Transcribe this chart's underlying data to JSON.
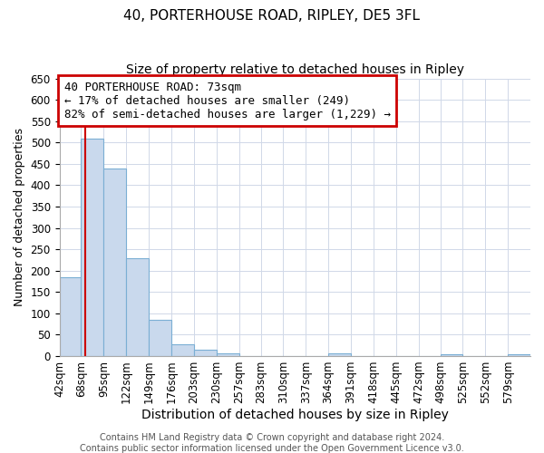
{
  "title": "40, PORTERHOUSE ROAD, RIPLEY, DE5 3FL",
  "subtitle": "Size of property relative to detached houses in Ripley",
  "xlabel": "Distribution of detached houses by size in Ripley",
  "ylabel": "Number of detached properties",
  "bin_edges": [
    42,
    68,
    95,
    122,
    149,
    176,
    203,
    230,
    257,
    283,
    310,
    337,
    364,
    391,
    418,
    445,
    472,
    498,
    525,
    552,
    579
  ],
  "bin_labels": [
    "42sqm",
    "68sqm",
    "95sqm",
    "122sqm",
    "149sqm",
    "176sqm",
    "203sqm",
    "230sqm",
    "257sqm",
    "283sqm",
    "310sqm",
    "337sqm",
    "364sqm",
    "391sqm",
    "418sqm",
    "445sqm",
    "472sqm",
    "498sqm",
    "525sqm",
    "552sqm",
    "579sqm"
  ],
  "bar_heights": [
    185,
    510,
    440,
    228,
    85,
    28,
    14,
    7,
    0,
    0,
    0,
    0,
    7,
    0,
    0,
    0,
    0,
    5,
    0,
    0,
    5
  ],
  "bar_color": "#c9d9ed",
  "bar_edge_color": "#7bafd4",
  "property_line_x": 73,
  "property_line_color": "#cc0000",
  "annotation_text": "40 PORTERHOUSE ROAD: 73sqm\n← 17% of detached houses are smaller (249)\n82% of semi-detached houses are larger (1,229) →",
  "annotation_box_color": "#ffffff",
  "annotation_box_edge_color": "#cc0000",
  "ylim": [
    0,
    650
  ],
  "yticks": [
    0,
    50,
    100,
    150,
    200,
    250,
    300,
    350,
    400,
    450,
    500,
    550,
    600,
    650
  ],
  "footer_line1": "Contains HM Land Registry data © Crown copyright and database right 2024.",
  "footer_line2": "Contains public sector information licensed under the Open Government Licence v3.0.",
  "title_fontsize": 11,
  "subtitle_fontsize": 10,
  "xlabel_fontsize": 10,
  "ylabel_fontsize": 9,
  "tick_fontsize": 8.5,
  "annotation_fontsize": 9,
  "footer_fontsize": 7,
  "grid_color": "#d0d8e8"
}
